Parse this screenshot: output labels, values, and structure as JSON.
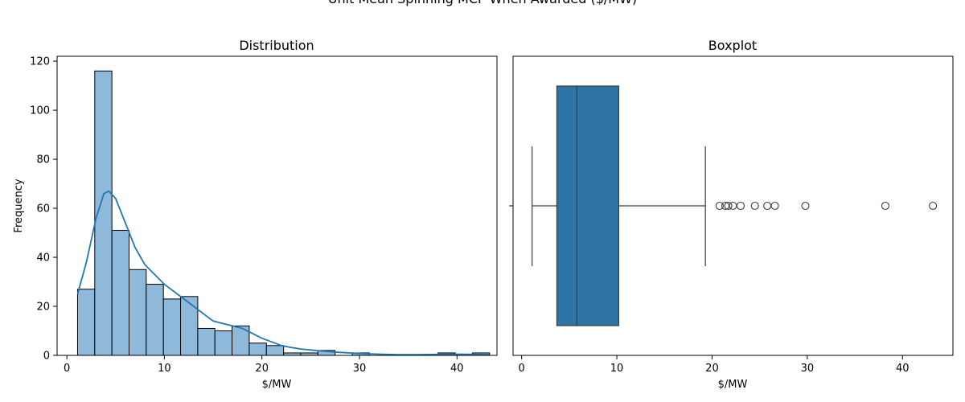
{
  "figure": {
    "suptitle": "Unit Mean Spinning MCP When Awarded ($/MW)"
  },
  "colors": {
    "bar_fill": "#8fb9db",
    "bar_edge": "#000000",
    "kde_line": "#1f77b4",
    "box_fill": "#2f74a6",
    "box_line": "#3d3d3d",
    "axis": "#000000"
  },
  "chart_data": [
    {
      "type": "bar",
      "subtype": "histogram",
      "title": "Distribution",
      "xlabel": "$/MW",
      "ylabel": "Frequency",
      "xlim": [
        -1,
        44.1
      ],
      "ylim": [
        0,
        122
      ],
      "xticks": [
        0,
        10,
        20,
        30,
        40
      ],
      "yticks": [
        0,
        20,
        40,
        60,
        80,
        100,
        120
      ],
      "bin_edges": [
        1.1,
        2.86,
        4.62,
        6.38,
        8.14,
        9.9,
        11.66,
        13.42,
        15.18,
        16.94,
        18.7,
        20.46,
        22.22,
        23.98,
        25.74,
        27.5,
        29.26,
        31.02,
        32.78,
        34.54,
        36.3,
        38.06,
        39.82,
        41.58,
        43.34
      ],
      "values": [
        27,
        116,
        51,
        35,
        29,
        23,
        24,
        11,
        10,
        12,
        5,
        4,
        1,
        1,
        2,
        0,
        1,
        0,
        0,
        0,
        0,
        1,
        0,
        1
      ],
      "kde": {
        "x": [
          1.1,
          2,
          3,
          3.8,
          4.3,
          5,
          6,
          7,
          8,
          9,
          10,
          11,
          12,
          13,
          14,
          15,
          16,
          17,
          18,
          19,
          20,
          21,
          22,
          23,
          24,
          25,
          26,
          27,
          28,
          30,
          32,
          34,
          36,
          38,
          40,
          42,
          43.3
        ],
        "y": [
          25,
          38,
          56,
          66,
          67,
          64,
          54,
          44,
          37,
          33,
          29,
          26,
          23,
          20,
          17,
          14,
          13,
          12,
          11,
          9,
          7,
          5.5,
          4,
          3.2,
          2.6,
          2.2,
          1.8,
          1.5,
          1.2,
          0.8,
          0.5,
          0.3,
          0.3,
          0.4,
          0.5,
          0.4,
          0.3
        ]
      }
    },
    {
      "type": "box",
      "title": "Boxplot",
      "xlabel": "$/MW",
      "xlim": [
        -0.9,
        45.3
      ],
      "xticks": [
        0,
        10,
        20,
        30,
        40
      ],
      "whisker_low": 1.1,
      "q1": 3.7,
      "median": 5.8,
      "q3": 10.2,
      "whisker_high": 19.3,
      "outliers": [
        20.8,
        21.4,
        21.7,
        22.2,
        23.0,
        24.5,
        25.8,
        26.6,
        29.8,
        38.2,
        43.2
      ]
    }
  ]
}
